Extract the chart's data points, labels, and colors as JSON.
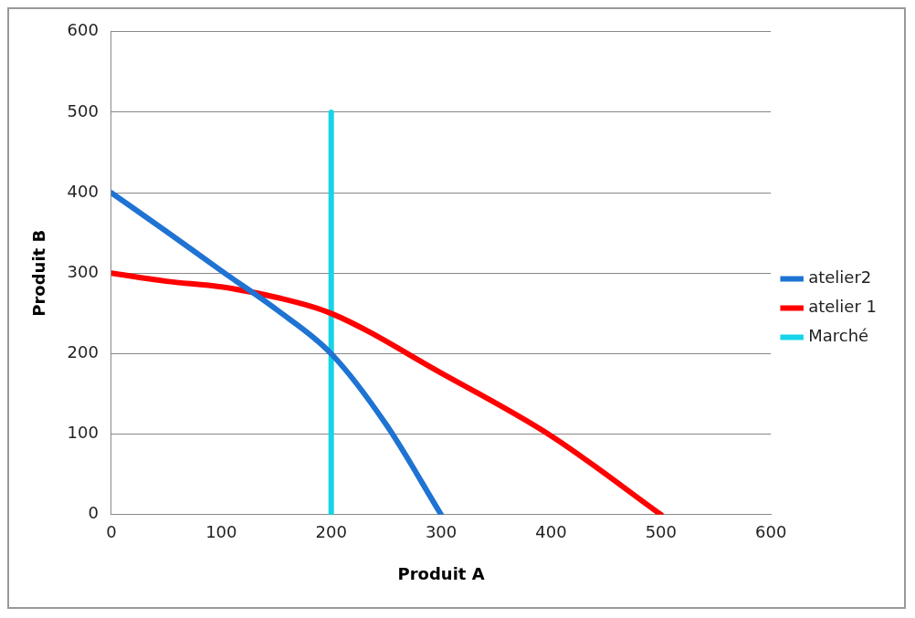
{
  "chart_data": {
    "type": "line",
    "xlabel": "Produit A",
    "ylabel": "Produit B",
    "xlim": [
      0,
      600
    ],
    "xticks": [
      0,
      100,
      200,
      300,
      400,
      500,
      600
    ],
    "ylim": [
      0,
      600
    ],
    "yticks": [
      0,
      100,
      200,
      300,
      400,
      500,
      600
    ],
    "grid": "y",
    "legend": "right",
    "marker": "none",
    "line_style": "solid",
    "series": [
      {
        "name": "atelier2",
        "color": "#1f73d2",
        "x": [
          0,
          50,
          100,
          150,
          200,
          250,
          300
        ],
        "values": [
          400,
          352,
          303,
          255,
          200,
          112,
          0
        ]
      },
      {
        "name": "atelier 1",
        "color": "#ff0000",
        "x": [
          0,
          50,
          100,
          150,
          200,
          300,
          400,
          500
        ],
        "values": [
          300,
          290,
          283,
          270,
          250,
          176,
          98,
          0
        ]
      },
      {
        "name": "Marché",
        "color": "#17d4e8",
        "x": [
          200,
          200
        ],
        "values": [
          0,
          500
        ]
      }
    ]
  }
}
